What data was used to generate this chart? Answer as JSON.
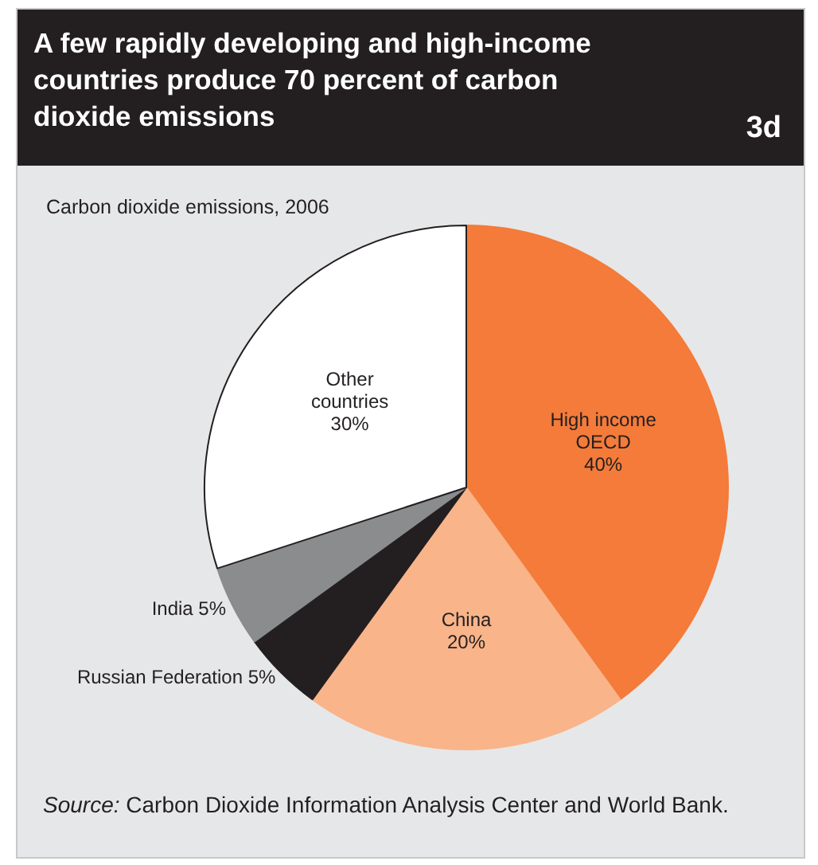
{
  "chart_data": {
    "type": "pie",
    "title": "A few rapidly developing and high-income countries produce 70 percent of carbon dioxide emissions",
    "subtitle": "Carbon dioxide emissions, 2006",
    "categories": [
      "High income OECD",
      "China",
      "Russian Federation",
      "India",
      "Other countries"
    ],
    "values": [
      40,
      20,
      5,
      5,
      30
    ],
    "colors": [
      "#f47b3a",
      "#f9b48a",
      "#231f20",
      "#8a8c8e",
      "#ffffff"
    ],
    "value_labels": [
      "40%",
      "20%",
      "5%",
      "5%",
      "30%"
    ],
    "legend": false,
    "annotations": [
      "3d",
      "Source: Carbon Dioxide Information Analysis Center and World Bank."
    ]
  }
}
